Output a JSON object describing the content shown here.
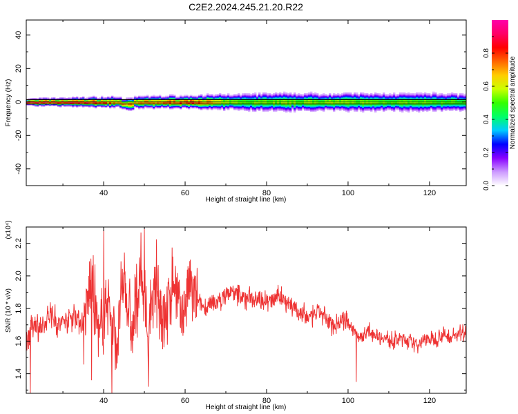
{
  "title": "C2E2.2024.245.21.20.R22",
  "chart_data": [
    {
      "type": "heatmap",
      "xlabel": "Height of straight line (km)",
      "ylabel": "Frequency (Hz)",
      "xlim": [
        21,
        129
      ],
      "ylim": [
        -50,
        49
      ],
      "xticks": [
        "40",
        "60",
        "80",
        "100",
        "120"
      ],
      "yticks": [
        "40",
        "20",
        "0",
        "-20",
        "-40"
      ],
      "colorbar": {
        "label": "Normalized spectral amplitude",
        "range": [
          0.0,
          1.0
        ],
        "ticks": [
          "0.0",
          "0.2",
          "0.4",
          "0.6",
          "0.8"
        ],
        "colors": [
          "#ffffff",
          "#cc99ff",
          "#8800ff",
          "#0000ff",
          "#00ccff",
          "#00ff66",
          "#33ff00",
          "#ccff00",
          "#ffcc00",
          "#ff6600",
          "#ff0000",
          "#ff0066",
          "#ff00aa"
        ]
      },
      "band": {
        "center_hz": 0,
        "half_width_hz_by_height": [
          [
            21,
            1.5
          ],
          [
            45,
            2.5
          ],
          [
            63,
            3
          ],
          [
            80,
            4
          ],
          [
            100,
            4
          ],
          [
            129,
            4
          ]
        ],
        "peak_amplitude_by_height": [
          [
            21,
            0.97
          ],
          [
            35,
            0.95
          ],
          [
            45,
            0.75
          ],
          [
            63,
            0.9
          ],
          [
            70,
            0.6
          ],
          [
            100,
            0.6
          ],
          [
            129,
            0.55
          ]
        ]
      }
    },
    {
      "type": "line",
      "xlabel": "Height of straight line (km)",
      "ylabel": "SNR (10 * v/v)",
      "yscale_label": "(x10⁴)",
      "xlim": [
        21,
        129
      ],
      "ylim": [
        1.28,
        2.3
      ],
      "xticks": [
        "40",
        "60",
        "80",
        "100",
        "120"
      ],
      "yticks": [
        "1.4",
        "1.6",
        "1.8",
        "2.0",
        "2.2"
      ],
      "color": "#ee3333",
      "series": [
        {
          "x": [
            21,
            23,
            25,
            27,
            29,
            31,
            33,
            35,
            37,
            39,
            41,
            43,
            45,
            47,
            49,
            51,
            53,
            55,
            57,
            59,
            61,
            63,
            65,
            67,
            69,
            71,
            73,
            75,
            77,
            79,
            81,
            83,
            85,
            87,
            89,
            91,
            93,
            95,
            97,
            99,
            101,
            103,
            105,
            107,
            109,
            111,
            113,
            115,
            117,
            119,
            121,
            123,
            125,
            127,
            129
          ],
          "y": [
            1.62,
            1.72,
            1.66,
            1.78,
            1.7,
            1.74,
            1.76,
            1.7,
            1.95,
            1.6,
            1.9,
            1.55,
            1.98,
            1.62,
            2.02,
            1.65,
            1.96,
            1.7,
            2.0,
            1.72,
            1.95,
            1.84,
            1.8,
            1.82,
            1.86,
            1.9,
            1.88,
            1.86,
            1.88,
            1.86,
            1.84,
            1.88,
            1.85,
            1.8,
            1.76,
            1.74,
            1.78,
            1.72,
            1.7,
            1.74,
            1.68,
            1.62,
            1.66,
            1.64,
            1.62,
            1.6,
            1.62,
            1.6,
            1.58,
            1.62,
            1.6,
            1.64,
            1.62,
            1.64,
            1.66
          ]
        }
      ],
      "annotations": {
        "max_peaks": [
          [
            37,
            2.29
          ],
          [
            50,
            2.29
          ],
          [
            40,
            2.28
          ]
        ],
        "min_dips": [
          [
            22,
            1.28
          ],
          [
            37,
            1.36
          ],
          [
            42,
            1.28
          ],
          [
            51,
            1.32
          ],
          [
            102,
            1.35
          ]
        ]
      }
    }
  ]
}
